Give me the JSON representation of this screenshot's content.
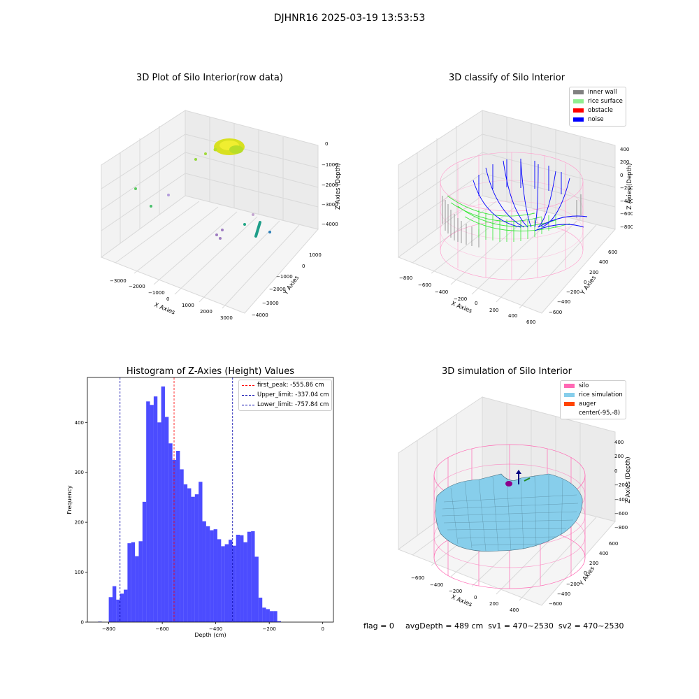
{
  "suptitle": "DJHNR16 2025-03-19 13:53:53",
  "panels": {
    "raw": {
      "title": "3D Plot of Silo Interior(row data)",
      "xlabel": "X Axies",
      "ylabel": "Y Axies",
      "zlabel": "Z Axies (Depth)",
      "xticks": [
        "−3000",
        "−2000",
        "−1000",
        "0",
        "1000",
        "2000",
        "3000"
      ],
      "yticks": [
        "1000",
        "0",
        "−1000",
        "−2000",
        "−3000",
        "−4000"
      ],
      "zticks": [
        "0",
        "−1000",
        "−2000",
        "−3000",
        "−4000"
      ]
    },
    "classify": {
      "title": "3D classify of Silo Interior",
      "xlabel": "X Axies",
      "ylabel": "Y Axies",
      "zlabel": "Z Axies (Depth)",
      "xticks": [
        "−800",
        "−600",
        "−400",
        "−200",
        "0",
        "200",
        "400",
        "600"
      ],
      "yticks": [
        "600",
        "400",
        "200",
        "0",
        "−200",
        "−400",
        "−600"
      ],
      "zticks": [
        "400",
        "200",
        "0",
        "−200",
        "−400",
        "−600",
        "−800"
      ],
      "legend": [
        {
          "label": "inner wall",
          "color": "#808080"
        },
        {
          "label": "rice surface",
          "color": "#90ee90"
        },
        {
          "label": "obstacle",
          "color": "#ff0000"
        },
        {
          "label": "noise",
          "color": "#0000ff"
        }
      ]
    },
    "simulation": {
      "title": "3D simulation of Silo Interior",
      "xlabel": "X Axies",
      "ylabel": "Y Axies",
      "zlabel": "Z Axies (Depth)",
      "xticks": [
        "−600",
        "−400",
        "−200",
        "0",
        "200",
        "400"
      ],
      "yticks": [
        "600",
        "400",
        "200",
        "0",
        "−200",
        "−400",
        "−600"
      ],
      "zticks": [
        "400",
        "200",
        "0",
        "−200",
        "−400",
        "−600",
        "−800"
      ],
      "legend": [
        {
          "label": "silo",
          "color": "#ff69b4"
        },
        {
          "label": "rice simulation",
          "color": "#87ceeb"
        },
        {
          "label": "auger",
          "color": "#ff4500"
        },
        {
          "label": "center(-95,-8)",
          "color": ""
        }
      ]
    }
  },
  "footer": {
    "flag": "flag = 0",
    "avg": "avgDepth = 489 cm  sv1 = 470~2530  sv2 = 470~2530"
  },
  "chart_data": {
    "type": "bar",
    "title": "Histogram of Z-Axies (Height) Values",
    "xlabel": "Depth (cm)",
    "ylabel": "Frequency",
    "xlim": [
      -880,
      40
    ],
    "ylim": [
      0,
      490
    ],
    "xticks": [
      -800,
      -600,
      -400,
      -200,
      0
    ],
    "yticks": [
      0,
      100,
      200,
      300,
      400
    ],
    "bar_color": "#0000ff",
    "bin_start": -800,
    "bin_width": 14,
    "values": [
      50,
      72,
      45,
      57,
      65,
      158,
      160,
      132,
      162,
      241,
      442,
      435,
      452,
      400,
      472,
      411,
      358,
      325,
      343,
      306,
      276,
      268,
      251,
      256,
      281,
      202,
      192,
      184,
      186,
      166,
      152,
      156,
      165,
      153,
      175,
      174,
      160,
      181,
      182,
      131,
      49,
      29,
      26,
      22,
      22,
      2
    ],
    "outlier_bins": [
      {
        "x": -840,
        "value": 1
      }
    ],
    "vlines": [
      {
        "x": -555.86,
        "color": "#ff0000",
        "label": "first_peak: -555.86 cm"
      },
      {
        "x": -337.04,
        "color": "#0000aa",
        "label": "Upper_limit: -337.04 cm"
      },
      {
        "x": -757.84,
        "color": "#0000aa",
        "label": "Lower_limit: -757.84 cm"
      }
    ]
  }
}
